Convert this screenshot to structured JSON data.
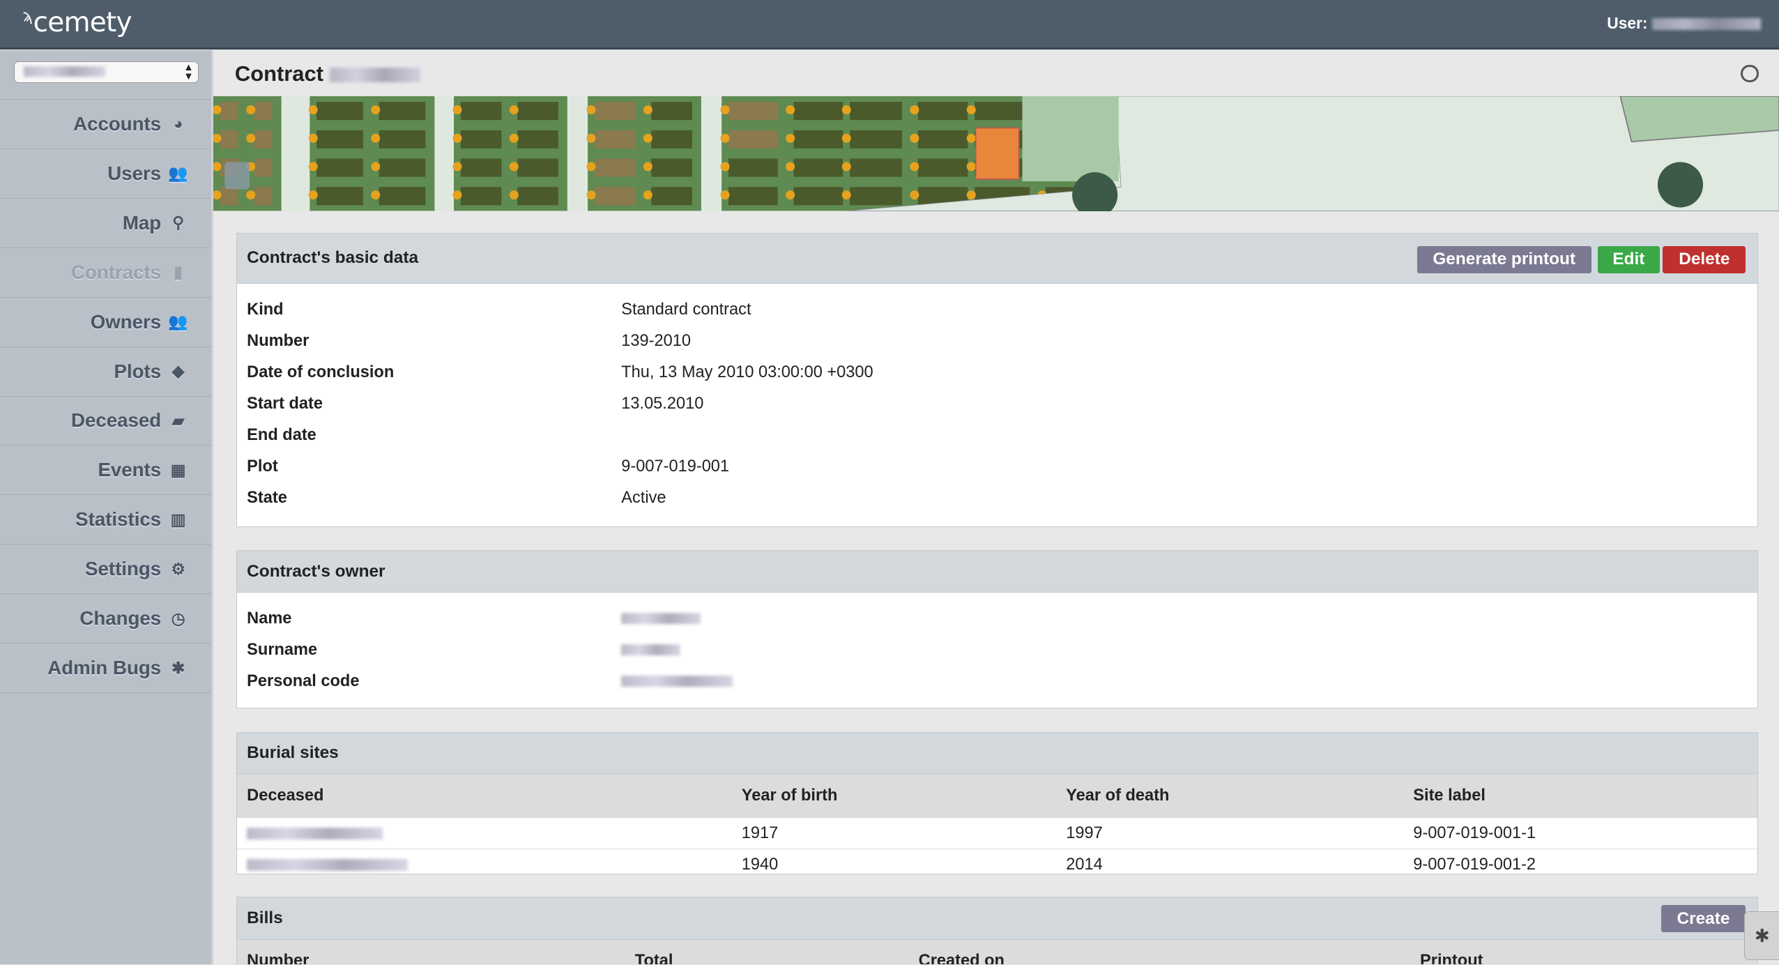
{
  "header": {
    "logo": "cemety",
    "user_label": "User:"
  },
  "sidebar": {
    "items": [
      {
        "label": "Accounts",
        "icon": "globe-icon",
        "glyph": "◕"
      },
      {
        "label": "Users",
        "icon": "users-icon",
        "glyph": "👥"
      },
      {
        "label": "Map",
        "icon": "map-marker-icon",
        "glyph": "⚲"
      },
      {
        "label": "Contracts",
        "icon": "file-icon",
        "glyph": "▮",
        "active": true
      },
      {
        "label": "Owners",
        "icon": "users-icon",
        "glyph": "👥"
      },
      {
        "label": "Plots",
        "icon": "tag-icon",
        "glyph": "◆"
      },
      {
        "label": "Deceased",
        "icon": "book-icon",
        "glyph": "▰"
      },
      {
        "label": "Events",
        "icon": "calendar-icon",
        "glyph": "▦"
      },
      {
        "label": "Statistics",
        "icon": "bar-chart-icon",
        "glyph": "▥"
      },
      {
        "label": "Settings",
        "icon": "gears-icon",
        "glyph": "⚙"
      },
      {
        "label": "Changes",
        "icon": "clock-icon",
        "glyph": "◷"
      },
      {
        "label": "Admin Bugs",
        "icon": "bug-icon",
        "glyph": "✱"
      }
    ]
  },
  "page": {
    "title": "Contract"
  },
  "basic": {
    "title": "Contract's basic data",
    "buttons": {
      "printout": "Generate printout",
      "edit": "Edit",
      "delete": "Delete"
    },
    "rows": [
      {
        "k": "Kind",
        "v": "Standard contract"
      },
      {
        "k": "Number",
        "v": "139-2010"
      },
      {
        "k": "Date of conclusion",
        "v": "Thu, 13 May 2010 03:00:00 +0300"
      },
      {
        "k": "Start date",
        "v": "13.05.2010"
      },
      {
        "k": "End date",
        "v": ""
      },
      {
        "k": "Plot",
        "v": "9-007-019-001"
      },
      {
        "k": "State",
        "v": "Active"
      }
    ]
  },
  "owner": {
    "title": "Contract's owner",
    "rows": [
      {
        "k": "Name"
      },
      {
        "k": "Surname"
      },
      {
        "k": "Personal code"
      }
    ]
  },
  "burial": {
    "title": "Burial sites",
    "columns": [
      "Deceased",
      "Year of birth",
      "Year of death",
      "Site label"
    ],
    "rows": [
      {
        "birth": "1917",
        "death": "1997",
        "label": "9-007-019-001-1"
      },
      {
        "birth": "1940",
        "death": "2014",
        "label": "9-007-019-001-2"
      }
    ]
  },
  "bills": {
    "title": "Bills",
    "create": "Create",
    "columns": [
      "Number",
      "Total",
      "Created on",
      "Printout"
    ]
  },
  "colors": {
    "topbar": "#4f5d6b",
    "sidebar": "#b9c0c8",
    "edit": "#3aa846",
    "delete": "#c0302f",
    "printout": "#7b7a92"
  }
}
